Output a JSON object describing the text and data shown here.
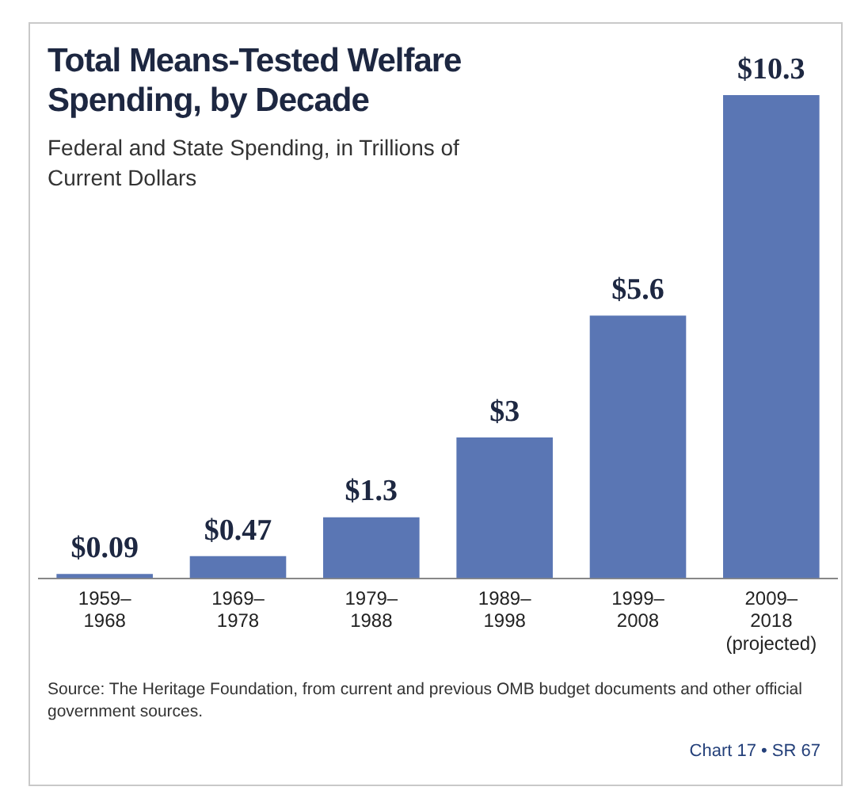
{
  "chart_data": {
    "type": "bar",
    "title": "Total Means-Tested Welfare Spending, by Decade",
    "subtitle": "Federal and State Spending, in Trillions of Current Dollars",
    "categories": [
      "1959–1968",
      "1969–1978",
      "1979–1988",
      "1989–1998",
      "1999–2008",
      "2009–2018 (projected)"
    ],
    "values": [
      0.09,
      0.47,
      1.3,
      3,
      5.6,
      10.3
    ],
    "value_labels": [
      "$0.09",
      "$0.47",
      "$1.3",
      "$3",
      "$5.6",
      "$10.3"
    ],
    "color": "#5a76b4",
    "grid": false,
    "legend": false,
    "tick_labels": "x",
    "annotations": [
      "Source: The Heritage Foundation, from current and previous OMB budget documents and other official government sources.",
      "Chart 17 • SR 67"
    ]
  }
}
